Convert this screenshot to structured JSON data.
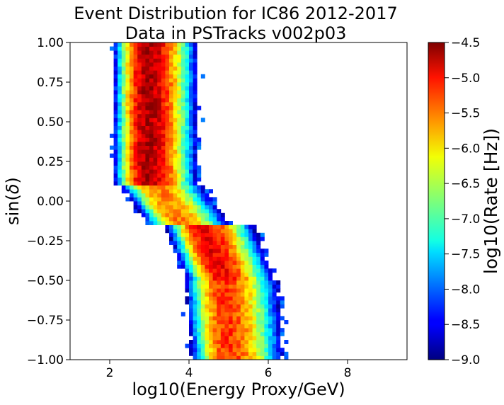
{
  "chart_data": {
    "type": "heatmap",
    "title_line1": "Event Distribution for IC86 2012-2017",
    "title_line2": "Data in PSTracks v002p03",
    "xlabel": "log10(Energy Proxy/GeV)",
    "ylabel_prefix": "sin(",
    "ylabel_symbol": "δ",
    "ylabel_suffix": ")",
    "xlim": [
      1.0,
      9.5
    ],
    "ylim": [
      -1.0,
      1.0
    ],
    "x_ticks": [
      {
        "value": 2,
        "label": "2"
      },
      {
        "value": 4,
        "label": "4"
      },
      {
        "value": 6,
        "label": "6"
      },
      {
        "value": 8,
        "label": "8"
      }
    ],
    "y_ticks": [
      {
        "value": 1.0,
        "label": "1.00"
      },
      {
        "value": 0.75,
        "label": "0.75"
      },
      {
        "value": 0.5,
        "label": "0.50"
      },
      {
        "value": 0.25,
        "label": "0.25"
      },
      {
        "value": 0.0,
        "label": "0.00"
      },
      {
        "value": -0.25,
        "label": "−0.25"
      },
      {
        "value": -0.5,
        "label": "−0.50"
      },
      {
        "value": -0.75,
        "label": "−0.75"
      },
      {
        "value": -1.0,
        "label": "−1.00"
      }
    ],
    "colorbar": {
      "label": "log10(Rate [Hz])",
      "colormap": "jet",
      "range": [
        -9.0,
        -4.5
      ],
      "ticks": [
        {
          "value": -4.5,
          "label": "−4.5"
        },
        {
          "value": -5.0,
          "label": "−5.0"
        },
        {
          "value": -5.5,
          "label": "−5.5"
        },
        {
          "value": -6.0,
          "label": "−6.0"
        },
        {
          "value": -6.5,
          "label": "−6.5"
        },
        {
          "value": -7.0,
          "label": "−7.0"
        },
        {
          "value": -7.5,
          "label": "−7.5"
        },
        {
          "value": -8.0,
          "label": "−8.0"
        },
        {
          "value": -8.5,
          "label": "−8.5"
        },
        {
          "value": -9.0,
          "label": "−9.0"
        }
      ]
    },
    "bins": {
      "x_edges_start": 1.0,
      "x_bin_width": 0.1,
      "y_edges_start": -1.0,
      "y_bin_width": 0.025
    },
    "ridges": [
      {
        "y_min": 0.1,
        "y_max": 1.0,
        "center_at_top": 2.95,
        "center_at_bottom": 2.95,
        "peak": -4.7,
        "width": 0.55,
        "density_fade": 0.0
      },
      {
        "y_min": -0.15,
        "y_max": 0.1,
        "center_at_top": 3.1,
        "center_at_bottom": 3.8,
        "peak": -5.6,
        "width": 0.6
      },
      {
        "y_min": -0.5,
        "y_max": -0.15,
        "center_at_top": 4.3,
        "center_at_bottom": 4.85,
        "peak": -5.0,
        "width": 0.6
      },
      {
        "y_min": -1.0,
        "y_max": -0.5,
        "center_at_top": 4.85,
        "center_at_bottom": 5.0,
        "peak": -5.3,
        "width": 0.65
      }
    ]
  }
}
